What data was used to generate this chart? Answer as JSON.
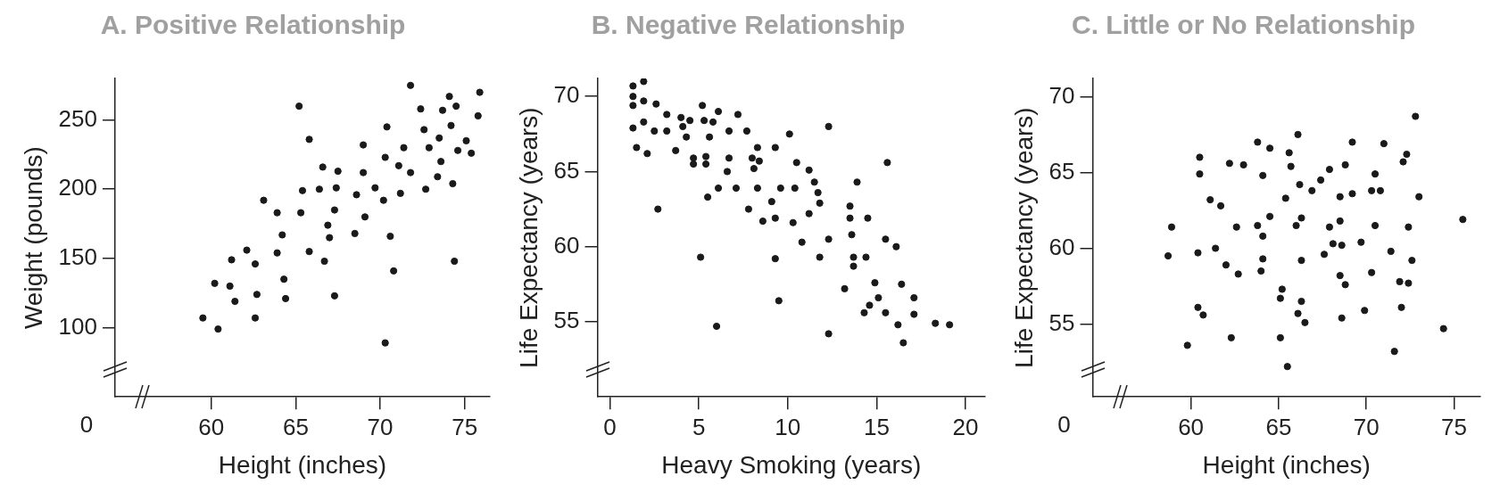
{
  "chart_data": [
    {
      "type": "scatter",
      "title": "A. Positive Relationship",
      "xlabel": "Height (inches)",
      "ylabel": "Weight (pounds)",
      "color": "#1a1a1a",
      "marker": "circle",
      "grid": false,
      "annotations": [
        "0"
      ],
      "xlim": [
        54.3,
        76.5
      ],
      "ylim": [
        50,
        280
      ],
      "xticks": [
        60,
        65,
        70,
        75
      ],
      "yticks": [
        100,
        150,
        200,
        250
      ],
      "x": [
        59.5,
        60.4,
        60.2,
        61.1,
        61.2,
        61.4,
        62.1,
        62.6,
        62.7,
        62.6,
        63.1,
        63.9,
        64.2,
        63.9,
        64.3,
        64.4,
        65.2,
        65.4,
        65.3,
        65.8,
        65.8,
        66.6,
        66.4,
        66.7,
        66.9,
        67.0,
        67.3,
        67.4,
        67.5,
        67.3,
        68.5,
        68.6,
        69.0,
        69.0,
        69.1,
        69.7,
        70.2,
        70.3,
        70.3,
        70.4,
        70.6,
        70.8,
        71.1,
        71.2,
        71.4,
        71.8,
        71.8,
        72.4,
        72.6,
        72.7,
        72.9,
        73.4,
        73.5,
        73.6,
        73.7,
        74.1,
        74.2,
        74.3,
        74.4,
        74.5,
        74.6,
        75.1,
        75.4,
        75.8,
        75.9
      ],
      "values": [
        107,
        99,
        132,
        130,
        149,
        119,
        156,
        146,
        124,
        107,
        192,
        183,
        167,
        154,
        135,
        121,
        260,
        199,
        183,
        236,
        155,
        216,
        200,
        148,
        174,
        165,
        185,
        201,
        213,
        123,
        168,
        196,
        212,
        232,
        180,
        201,
        192,
        89,
        223,
        245,
        166,
        141,
        217,
        197,
        230,
        275,
        212,
        258,
        243,
        200,
        230,
        209,
        237,
        220,
        257,
        267,
        246,
        204,
        148,
        260,
        228,
        235,
        226,
        253,
        270
      ]
    },
    {
      "type": "scatter",
      "title": "B. Negative Relationship",
      "xlabel": "Heavy Smoking (years)",
      "ylabel": "Life Expectancy (years)",
      "color": "#1a1a1a",
      "marker": "circle",
      "grid": false,
      "xlim": [
        -0.7,
        21.1
      ],
      "ylim": [
        50,
        71.2
      ],
      "xticks": [
        0,
        5,
        10,
        15,
        20
      ],
      "yticks": [
        55,
        60,
        65,
        70
      ],
      "x": [
        1.3,
        1.3,
        1.3,
        1.3,
        1.9,
        1.9,
        1.9,
        1.5,
        2.1,
        2.6,
        2.5,
        2.7,
        3.2,
        3.2,
        3.7,
        4.0,
        4.1,
        4.5,
        4.3,
        4.7,
        4.7,
        5.1,
        5.2,
        5.3,
        5.8,
        5.4,
        5.4,
        5.6,
        5.5,
        6.1,
        6.1,
        6.0,
        6.7,
        6.7,
        6.6,
        7.1,
        7.2,
        7.7,
        7.8,
        8.0,
        8.1,
        8.3,
        8.4,
        8.3,
        8.6,
        9.1,
        9.3,
        9.3,
        9.3,
        9.5,
        9.6,
        10.1,
        10.3,
        10.4,
        10.5,
        10.8,
        11.2,
        11.2,
        11.5,
        11.7,
        11.8,
        11.8,
        12.3,
        12.3,
        12.3,
        13.2,
        13.5,
        13.5,
        13.6,
        13.7,
        13.7,
        13.9,
        14.3,
        14.4,
        14.5,
        14.6,
        14.9,
        15.1,
        15.5,
        15.5,
        15.6,
        16.1,
        16.2,
        16.4,
        16.5,
        17.1,
        17.1,
        18.3,
        19.1
      ],
      "values": [
        70.7,
        70.0,
        69.4,
        67.9,
        71.0,
        69.7,
        68.3,
        66.6,
        66.2,
        69.5,
        67.7,
        62.5,
        68.8,
        67.7,
        66.4,
        68.6,
        68.0,
        68.4,
        67.3,
        65.9,
        65.5,
        59.3,
        69.4,
        68.4,
        68.3,
        66.0,
        65.5,
        67.3,
        63.3,
        69.0,
        63.9,
        54.7,
        67.7,
        65.9,
        65.0,
        63.9,
        68.8,
        67.7,
        62.5,
        65.9,
        65.2,
        66.6,
        65.7,
        63.9,
        61.7,
        63.0,
        66.6,
        61.9,
        59.2,
        56.4,
        63.9,
        67.5,
        61.6,
        63.9,
        65.6,
        60.3,
        65.1,
        62.2,
        64.3,
        63.6,
        62.9,
        59.3,
        60.5,
        68.0,
        54.2,
        57.2,
        62.7,
        61.9,
        60.8,
        59.3,
        58.7,
        64.3,
        55.6,
        59.3,
        61.9,
        56.1,
        57.6,
        56.6,
        60.5,
        55.6,
        65.6,
        60.0,
        54.8,
        57.5,
        53.6,
        56.6,
        55.5,
        54.9,
        54.8
      ]
    },
    {
      "type": "scatter",
      "title": "C. Little or No Relationship",
      "xlabel": "Height (inches)",
      "ylabel": "Life Expectancy (years)",
      "color": "#1a1a1a",
      "marker": "circle",
      "grid": false,
      "annotations": [
        "0"
      ],
      "xlim": [
        54.4,
        76.5
      ],
      "ylim": [
        50.2,
        71.2
      ],
      "xticks": [
        60,
        65,
        70,
        75
      ],
      "yticks": [
        55,
        60,
        65,
        70
      ],
      "x": [
        58.7,
        58.9,
        59.8,
        60.4,
        60.5,
        60.5,
        60.4,
        60.7,
        61.1,
        61.7,
        61.4,
        62.0,
        62.2,
        62.6,
        62.7,
        62.3,
        63.0,
        63.8,
        63.8,
        64.1,
        64.1,
        64.1,
        64.0,
        64.5,
        64.5,
        65.2,
        65.1,
        65.1,
        65.5,
        65.4,
        65.6,
        65.7,
        66.1,
        66.2,
        66.0,
        66.3,
        66.3,
        66.3,
        66.1,
        66.5,
        66.9,
        67.4,
        67.6,
        67.9,
        67.9,
        68.1,
        68.5,
        68.5,
        68.6,
        68.5,
        68.8,
        68.8,
        68.6,
        69.2,
        69.2,
        69.7,
        69.9,
        70.3,
        70.3,
        70.5,
        70.5,
        70.8,
        71.0,
        71.4,
        71.6,
        71.9,
        72.0,
        72.1,
        72.3,
        72.4,
        72.4,
        72.6,
        72.8,
        73.0,
        74.4,
        75.5
      ],
      "values": [
        59.5,
        61.4,
        53.6,
        59.7,
        66.0,
        64.9,
        56.1,
        55.6,
        63.2,
        62.8,
        60.0,
        58.9,
        65.6,
        61.4,
        58.3,
        54.1,
        65.5,
        67.0,
        61.5,
        64.8,
        60.8,
        59.3,
        58.5,
        66.6,
        62.1,
        57.3,
        56.7,
        54.1,
        52.2,
        63.3,
        66.3,
        65.4,
        67.5,
        64.2,
        61.5,
        62.0,
        59.2,
        56.5,
        55.7,
        55.1,
        63.8,
        64.5,
        59.6,
        65.2,
        61.4,
        60.3,
        63.4,
        61.8,
        60.2,
        58.2,
        65.5,
        57.6,
        55.4,
        67.0,
        63.6,
        60.4,
        55.9,
        63.8,
        58.4,
        64.9,
        61.5,
        63.8,
        66.9,
        59.8,
        53.2,
        57.8,
        56.1,
        65.7,
        66.2,
        61.4,
        57.7,
        59.2,
        68.7,
        63.4,
        54.7,
        61.9
      ]
    }
  ]
}
